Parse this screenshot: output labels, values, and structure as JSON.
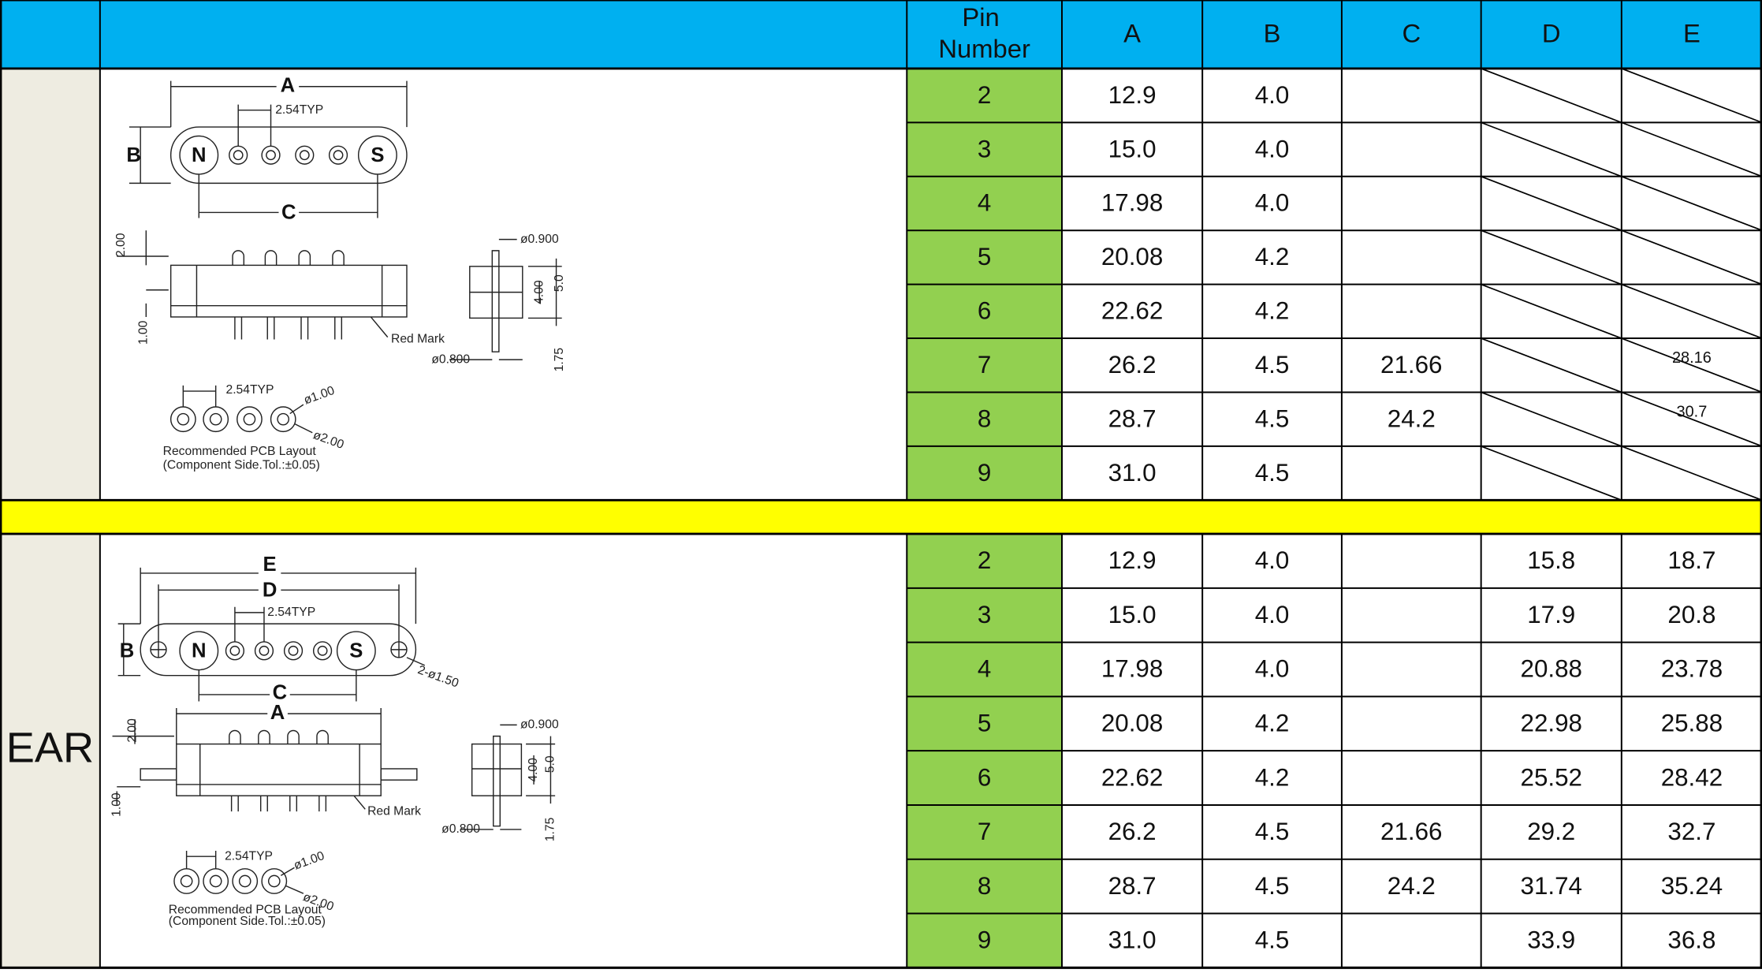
{
  "header": {
    "columns": [
      "Pin Number",
      "A",
      "B",
      "C",
      "D",
      "E"
    ]
  },
  "sections": [
    {
      "label": null,
      "struck_cells": true,
      "rows": [
        [
          "2",
          "12.9",
          "4.0",
          null,
          null,
          null
        ],
        [
          "3",
          "15.0",
          "4.0",
          null,
          null,
          null
        ],
        [
          "4",
          "17.98",
          "4.0",
          null,
          null,
          null
        ],
        [
          "5",
          "20.08",
          "4.2",
          null,
          null,
          null
        ],
        [
          "6",
          "22.62",
          "4.2",
          null,
          null,
          null
        ],
        [
          "7",
          "26.2",
          "4.5",
          "21.66",
          null,
          "28.16"
        ],
        [
          "8",
          "28.7",
          "4.5",
          "24.2",
          null,
          "30.7"
        ],
        [
          "9",
          "31.0",
          "4.5",
          null,
          null,
          null
        ]
      ],
      "drawing_labels": [
        "A",
        "2.54TYP",
        "B",
        "N",
        "S",
        "C",
        "2.00",
        "ø0.900",
        "4.00",
        "5.0",
        "1.00",
        "Red Mark",
        "ø0.800",
        "1.75",
        "2.54TYP",
        "ø1.00",
        "ø2.00",
        "Recommended PCB Layout",
        "(Component Side.Tol.:±0.05)"
      ]
    },
    {
      "label": "EAR",
      "struck_cells": false,
      "rows": [
        [
          "2",
          "12.9",
          "4.0",
          null,
          "15.8",
          "18.7"
        ],
        [
          "3",
          "15.0",
          "4.0",
          null,
          "17.9",
          "20.8"
        ],
        [
          "4",
          "17.98",
          "4.0",
          null,
          "20.88",
          "23.78"
        ],
        [
          "5",
          "20.08",
          "4.2",
          null,
          "22.98",
          "25.88"
        ],
        [
          "6",
          "22.62",
          "4.2",
          null,
          "25.52",
          "28.42"
        ],
        [
          "7",
          "26.2",
          "4.5",
          "21.66",
          "29.2",
          "32.7"
        ],
        [
          "8",
          "28.7",
          "4.5",
          "24.2",
          "31.74",
          "35.24"
        ],
        [
          "9",
          "31.0",
          "4.5",
          null,
          "33.9",
          "36.8"
        ]
      ],
      "drawing_labels": [
        "E",
        "D",
        "2.54TYP",
        "B",
        "N",
        "S",
        "2-ø1.50",
        "C",
        "A",
        "2.00",
        "ø0.900",
        "4.00",
        "5.0",
        "1.00",
        "Red Mark",
        "ø0.800",
        "1.75",
        "2.54TYP",
        "ø1.00",
        "ø2.00",
        "Recommended PCB Layout",
        "(Component Side.Tol.:±0.05)"
      ]
    }
  ]
}
